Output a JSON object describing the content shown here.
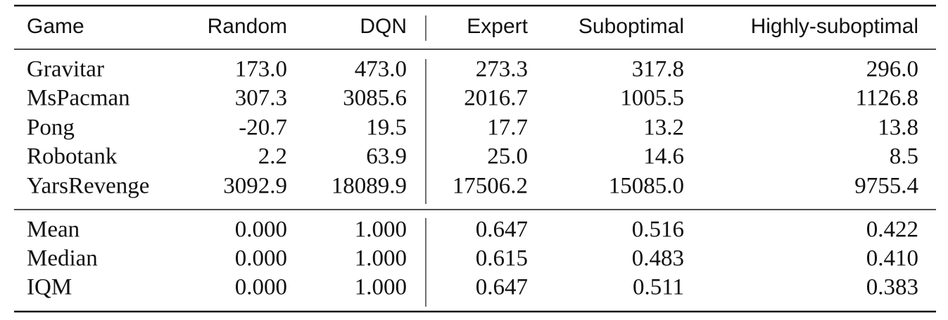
{
  "table": {
    "header": [
      "Game",
      "Random",
      "DQN",
      "Expert",
      "Suboptimal",
      "Highly-suboptimal"
    ],
    "games": [
      [
        "Gravitar",
        "173.0",
        "473.0",
        "273.3",
        "317.8",
        "296.0"
      ],
      [
        "MsPacman",
        "307.3",
        "3085.6",
        "2016.7",
        "1005.5",
        "1126.8"
      ],
      [
        "Pong",
        "-20.7",
        "19.5",
        "17.7",
        "13.2",
        "13.8"
      ],
      [
        "Robotank",
        "2.2",
        "63.9",
        "25.0",
        "14.6",
        "8.5"
      ],
      [
        "YarsRevenge",
        "3092.9",
        "18089.9",
        "17506.2",
        "15085.0",
        "9755.4"
      ]
    ],
    "summary": [
      [
        "Mean",
        "0.000",
        "1.000",
        "0.647",
        "0.516",
        "0.422"
      ],
      [
        "Median",
        "0.000",
        "1.000",
        "0.615",
        "0.483",
        "0.410"
      ],
      [
        "IQM",
        "0.000",
        "1.000",
        "0.647",
        "0.511",
        "0.383"
      ]
    ]
  }
}
